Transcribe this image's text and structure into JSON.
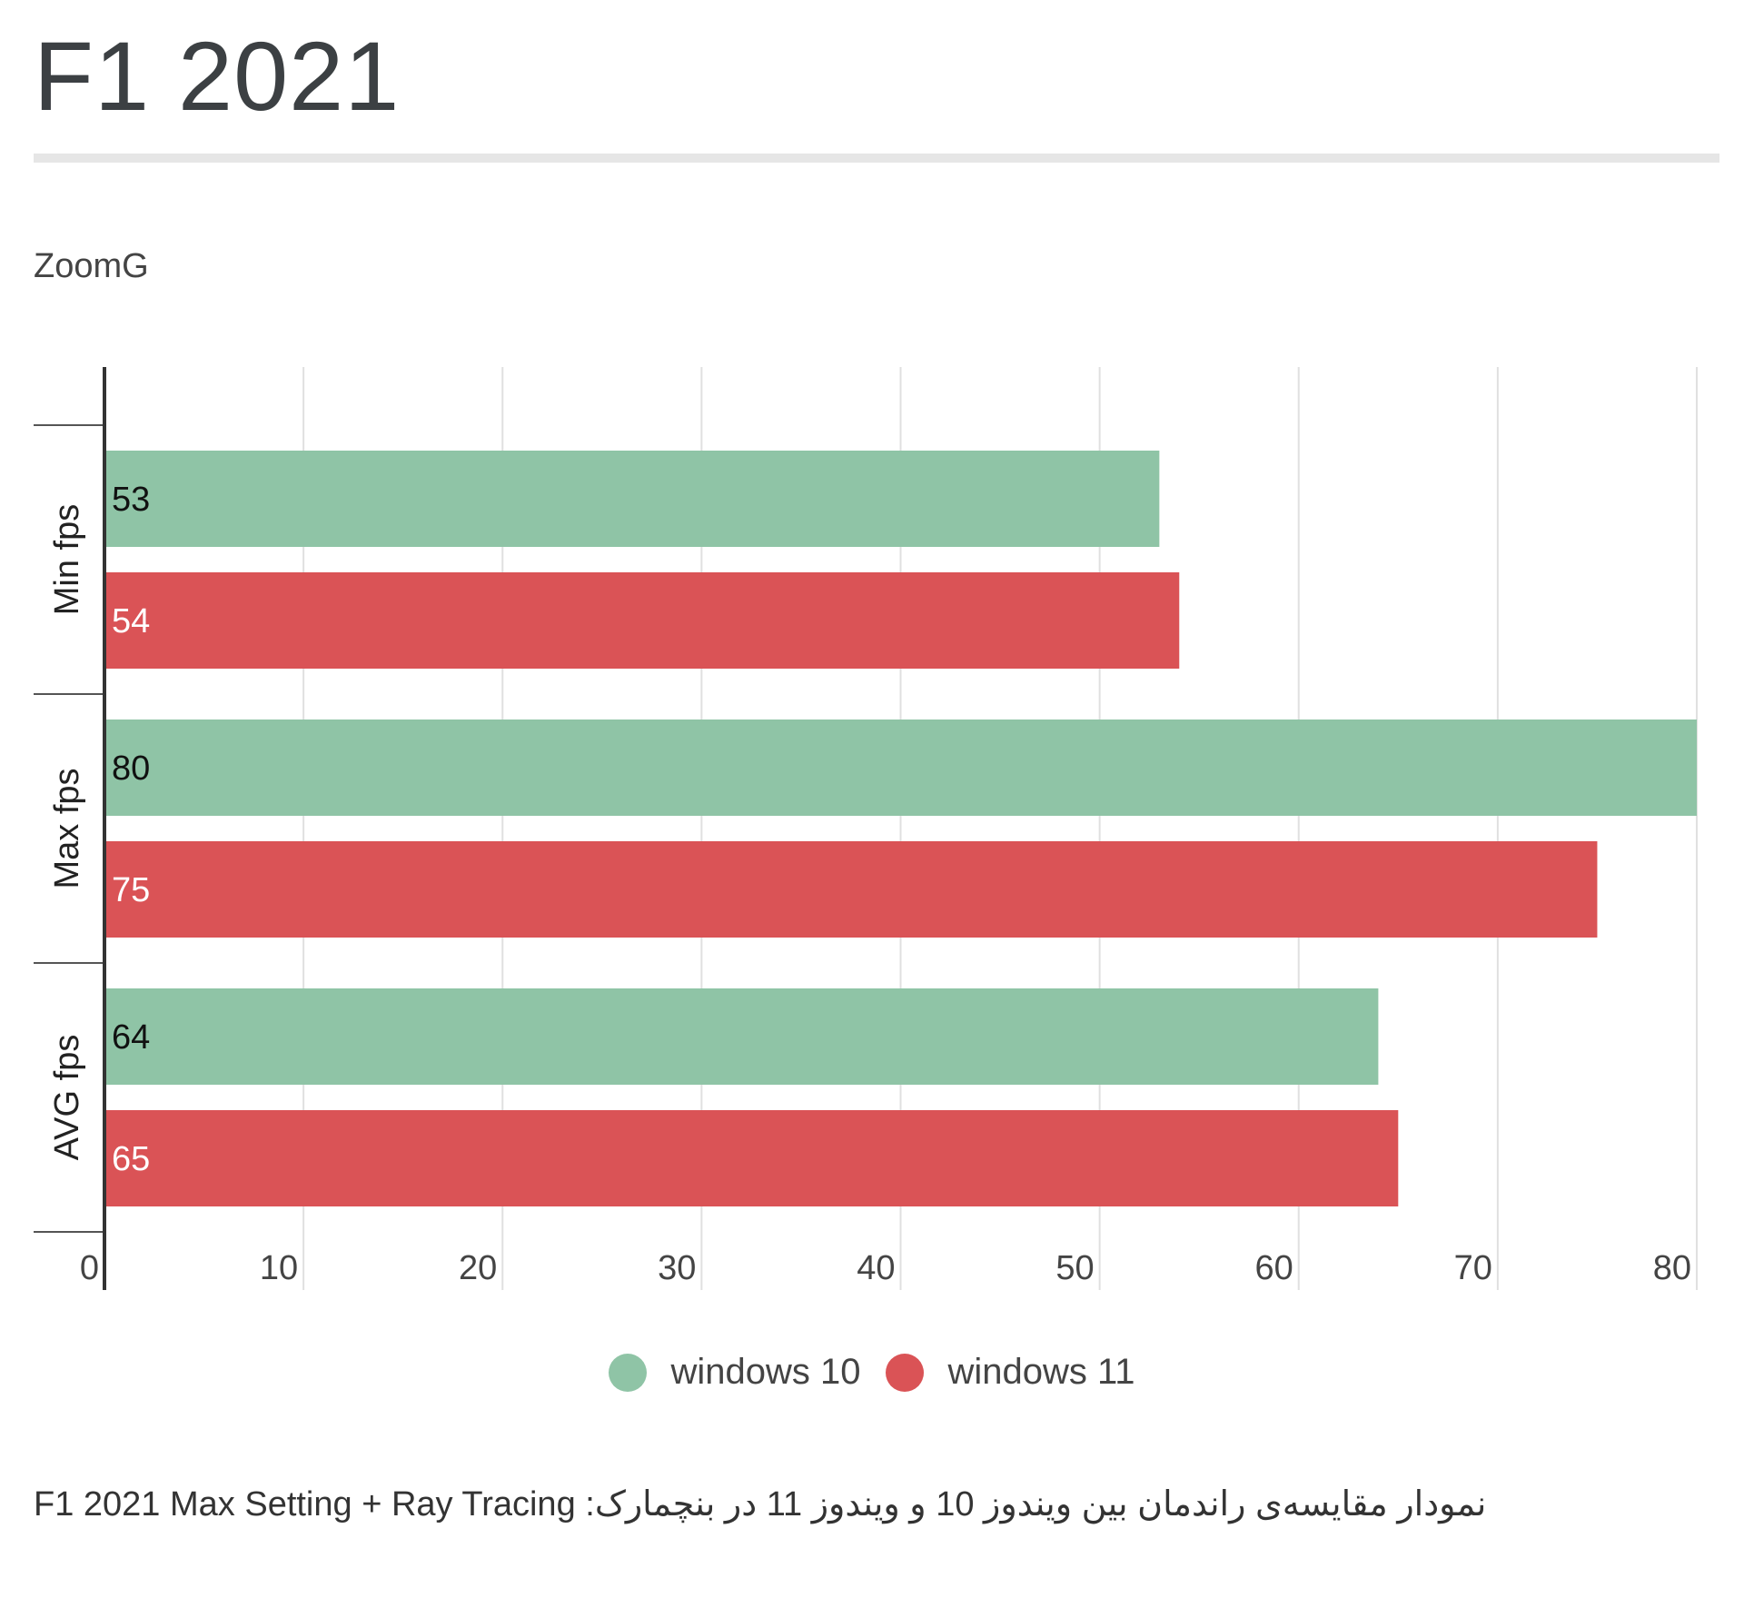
{
  "header": {
    "title": "F1 2021",
    "source": "ZoomG"
  },
  "caption": "نمودار مقایسه‌ی راندمان بین ویندوز 10 و ویندوز 11 در بنچمارک: F1 2021 Max Setting + Ray Tracing",
  "colors": {
    "windows10": "#8fc4a6",
    "windows11": "#da5356",
    "grid": "#e0e0e0",
    "axis": "#333333"
  },
  "chart_data": {
    "type": "bar",
    "orientation": "horizontal",
    "title": "F1 2021",
    "categories": [
      "Min fps",
      "Max fps",
      "AVG fps"
    ],
    "series": [
      {
        "name": "windows 10",
        "color": "#8fc4a6",
        "values": [
          53,
          80,
          64
        ]
      },
      {
        "name": "windows 11",
        "color": "#da5356",
        "values": [
          54,
          75,
          65
        ]
      }
    ],
    "xlim": [
      0,
      80
    ],
    "xticks": [
      0,
      10,
      20,
      30,
      40,
      50,
      60,
      70,
      80
    ],
    "grid": true,
    "legend_position": "bottom-center",
    "data_labels": true
  }
}
